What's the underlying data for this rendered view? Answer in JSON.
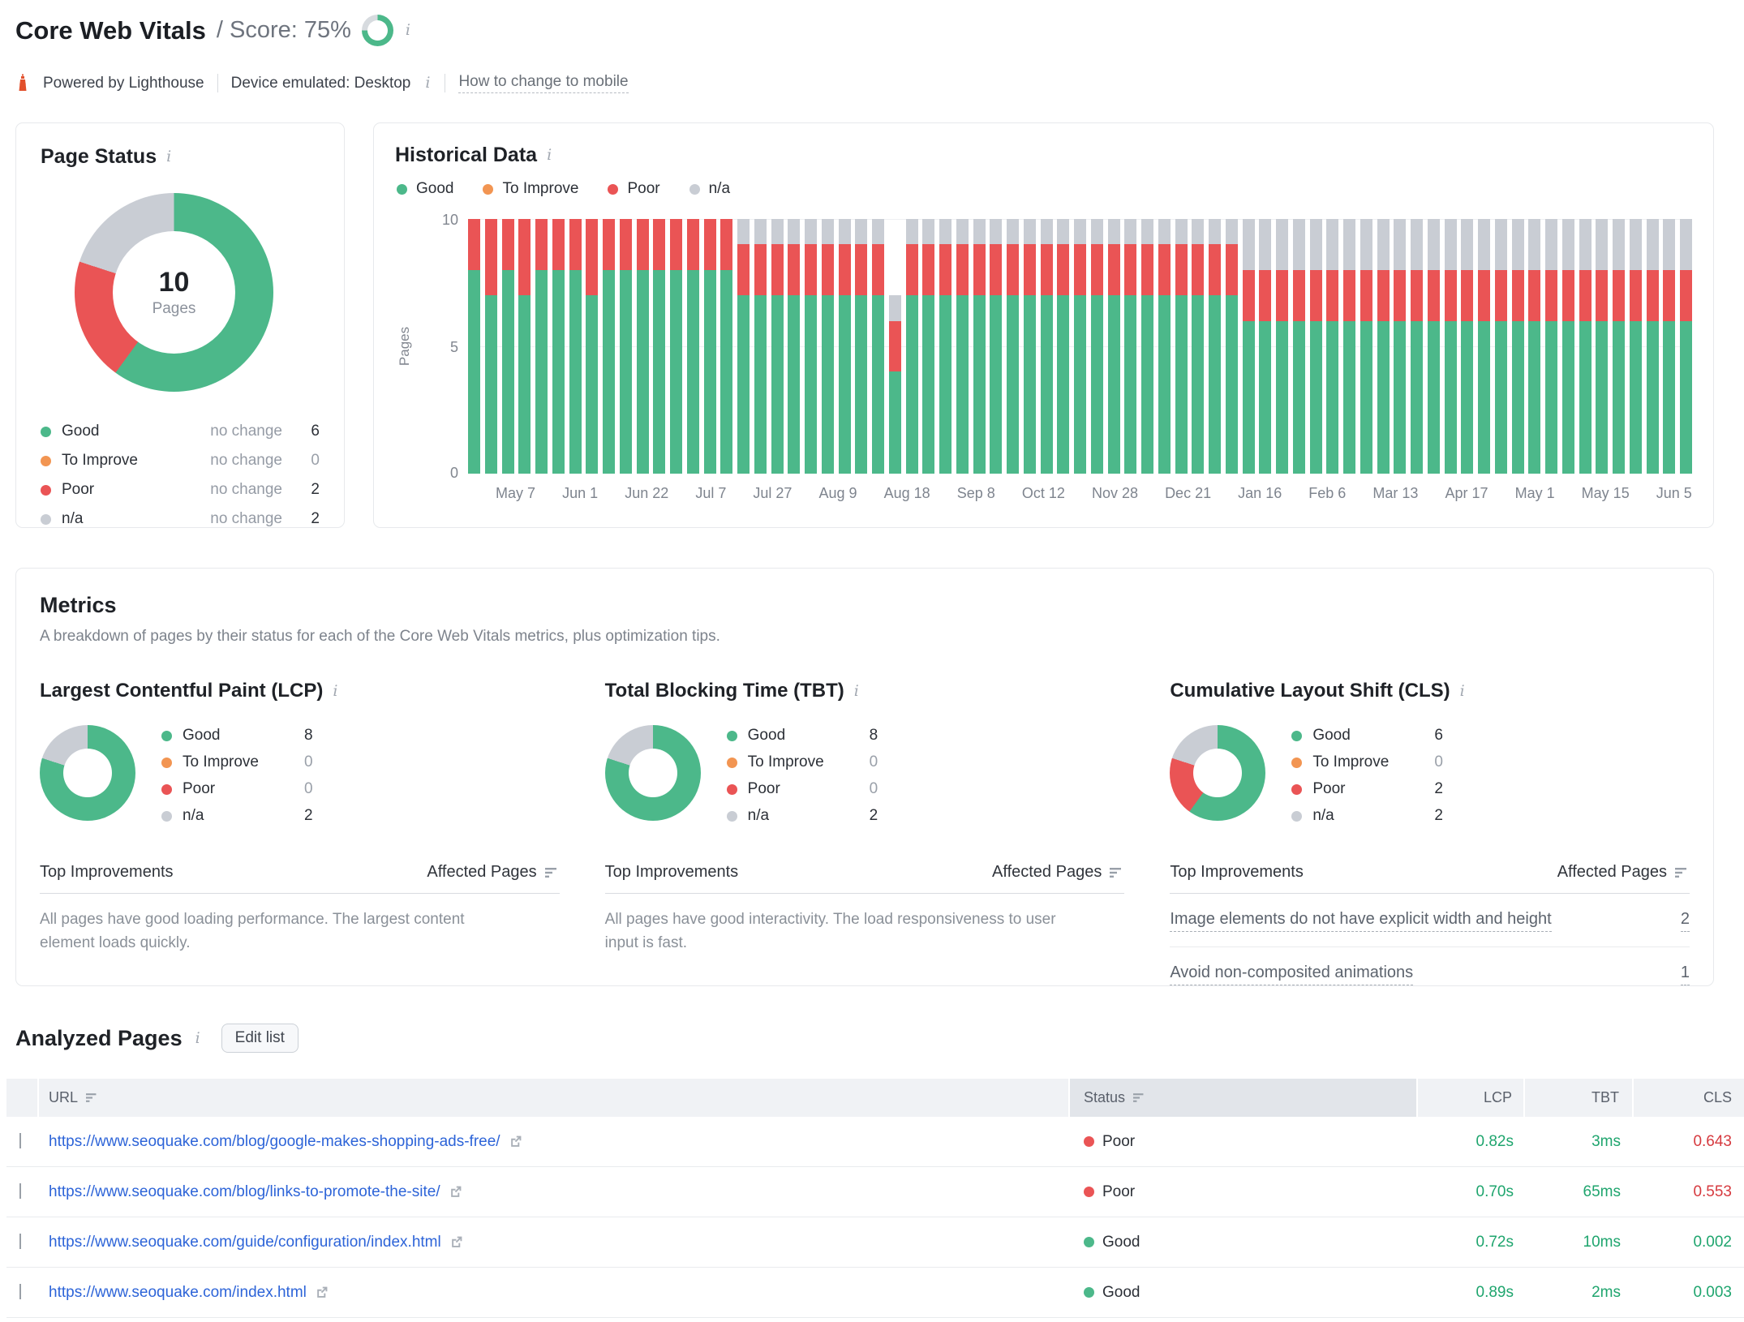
{
  "header": {
    "title": "Core Web Vitals",
    "score_label": "/ Score: 75%",
    "score_percent": 75,
    "powered_by": "Powered by Lighthouse",
    "device_label": "Device emulated: Desktop",
    "mobile_link": "How to change to mobile"
  },
  "colors": {
    "good": "#4cb88a",
    "to_improve": "#f29552",
    "poor": "#ea5455",
    "na": "#c9cdd4",
    "link_blue": "#2d64d8",
    "value_good": "#1fa56e",
    "value_poor": "#d63a3f"
  },
  "page_status": {
    "title": "Page Status",
    "center_value": "10",
    "center_label": "Pages",
    "rows": [
      {
        "label": "Good",
        "change": "no change",
        "count": "6"
      },
      {
        "label": "To Improve",
        "change": "no change",
        "count": "0"
      },
      {
        "label": "Poor",
        "change": "no change",
        "count": "2"
      },
      {
        "label": "n/a",
        "change": "no change",
        "count": "2"
      }
    ]
  },
  "historical": {
    "title": "Historical Data",
    "legend": [
      {
        "label": "Good"
      },
      {
        "label": "To Improve"
      },
      {
        "label": "Poor"
      },
      {
        "label": "n/a"
      }
    ],
    "ylabel": "Pages",
    "yticks": [
      "10",
      "5",
      "0"
    ]
  },
  "chart_data": [
    {
      "type": "pie",
      "name": "page_status_donut",
      "labels": [
        "Good",
        "To Improve",
        "Poor",
        "n/a"
      ],
      "values": [
        6,
        0,
        2,
        2
      ],
      "center_text": "10 Pages",
      "colors": [
        "#4cb88a",
        "#f29552",
        "#ea5455",
        "#c9cdd4"
      ]
    },
    {
      "type": "bar",
      "name": "historical",
      "stacked": true,
      "ylabel": "Pages",
      "ylim": [
        0,
        10
      ],
      "grid": true,
      "legend_position": "top",
      "series_order": [
        "good",
        "to_improve",
        "poor",
        "na"
      ],
      "x_labels": [
        "May 7",
        "Jun 1",
        "Jun 22",
        "Jul 7",
        "Jul 27",
        "Aug 9",
        "Aug 18",
        "Sep 8",
        "Oct 12",
        "Nov 28",
        "Dec 21",
        "Jan 16",
        "Feb 6",
        "Mar 13",
        "Apr 17",
        "May 1",
        "May 15",
        "Jun 5"
      ],
      "bars": [
        [
          8,
          0,
          2,
          0
        ],
        [
          7,
          0,
          3,
          0
        ],
        [
          8,
          0,
          2,
          0
        ],
        [
          7,
          0,
          3,
          0
        ],
        [
          8,
          0,
          2,
          0
        ],
        [
          8,
          0,
          2,
          0
        ],
        [
          8,
          0,
          2,
          0
        ],
        [
          7,
          0,
          3,
          0
        ],
        [
          8,
          0,
          2,
          0
        ],
        [
          8,
          0,
          2,
          0
        ],
        [
          8,
          0,
          2,
          0
        ],
        [
          8,
          0,
          2,
          0
        ],
        [
          8,
          0,
          2,
          0
        ],
        [
          8,
          0,
          2,
          0
        ],
        [
          8,
          0,
          2,
          0
        ],
        [
          8,
          0,
          2,
          0
        ],
        [
          7,
          0,
          2,
          1
        ],
        [
          7,
          0,
          2,
          1
        ],
        [
          7,
          0,
          2,
          1
        ],
        [
          7,
          0,
          2,
          1
        ],
        [
          7,
          0,
          2,
          1
        ],
        [
          7,
          0,
          2,
          1
        ],
        [
          7,
          0,
          2,
          1
        ],
        [
          7,
          0,
          2,
          1
        ],
        [
          7,
          0,
          2,
          1
        ],
        [
          4,
          0,
          2,
          1
        ],
        [
          7,
          0,
          2,
          1
        ],
        [
          7,
          0,
          2,
          1
        ],
        [
          7,
          0,
          2,
          1
        ],
        [
          7,
          0,
          2,
          1
        ],
        [
          7,
          0,
          2,
          1
        ],
        [
          7,
          0,
          2,
          1
        ],
        [
          7,
          0,
          2,
          1
        ],
        [
          7,
          0,
          2,
          1
        ],
        [
          7,
          0,
          2,
          1
        ],
        [
          7,
          0,
          2,
          1
        ],
        [
          7,
          0,
          2,
          1
        ],
        [
          7,
          0,
          2,
          1
        ],
        [
          7,
          0,
          2,
          1
        ],
        [
          7,
          0,
          2,
          1
        ],
        [
          7,
          0,
          2,
          1
        ],
        [
          7,
          0,
          2,
          1
        ],
        [
          7,
          0,
          2,
          1
        ],
        [
          7,
          0,
          2,
          1
        ],
        [
          7,
          0,
          2,
          1
        ],
        [
          7,
          0,
          2,
          1
        ],
        [
          6,
          0,
          2,
          2
        ],
        [
          6,
          0,
          2,
          2
        ],
        [
          6,
          0,
          2,
          2
        ],
        [
          6,
          0,
          2,
          2
        ],
        [
          6,
          0,
          2,
          2
        ],
        [
          6,
          0,
          2,
          2
        ],
        [
          6,
          0,
          2,
          2
        ],
        [
          6,
          0,
          2,
          2
        ],
        [
          6,
          0,
          2,
          2
        ],
        [
          6,
          0,
          2,
          2
        ],
        [
          6,
          0,
          2,
          2
        ],
        [
          6,
          0,
          2,
          2
        ],
        [
          6,
          0,
          2,
          2
        ],
        [
          6,
          0,
          2,
          2
        ],
        [
          6,
          0,
          2,
          2
        ],
        [
          6,
          0,
          2,
          2
        ],
        [
          6,
          0,
          2,
          2
        ],
        [
          6,
          0,
          2,
          2
        ],
        [
          6,
          0,
          2,
          2
        ],
        [
          6,
          0,
          2,
          2
        ],
        [
          6,
          0,
          2,
          2
        ],
        [
          6,
          0,
          2,
          2
        ],
        [
          6,
          0,
          2,
          2
        ],
        [
          6,
          0,
          2,
          2
        ],
        [
          6,
          0,
          2,
          2
        ],
        [
          6,
          0,
          2,
          2
        ],
        [
          6,
          0,
          2,
          2
        ]
      ]
    },
    {
      "type": "pie",
      "name": "lcp_donut",
      "labels": [
        "Good",
        "To Improve",
        "Poor",
        "n/a"
      ],
      "values": [
        8,
        0,
        0,
        2
      ]
    },
    {
      "type": "pie",
      "name": "tbt_donut",
      "labels": [
        "Good",
        "To Improve",
        "Poor",
        "n/a"
      ],
      "values": [
        8,
        0,
        0,
        2
      ]
    },
    {
      "type": "pie",
      "name": "cls_donut",
      "labels": [
        "Good",
        "To Improve",
        "Poor",
        "n/a"
      ],
      "values": [
        6,
        0,
        2,
        2
      ]
    }
  ],
  "metrics": {
    "title": "Metrics",
    "subtitle": "A breakdown of pages by their status for each of the Core Web Vitals metrics, plus optimization tips.",
    "top_improvements_label": "Top Improvements",
    "affected_pages_label": "Affected Pages",
    "items": [
      {
        "name": "Largest Contentful Paint (LCP)",
        "legend": [
          {
            "label": "Good",
            "count": "8"
          },
          {
            "label": "To Improve",
            "count": "0"
          },
          {
            "label": "Poor",
            "count": "0"
          },
          {
            "label": "n/a",
            "count": "2"
          }
        ],
        "note": "All pages have good loading performance. The largest content element loads quickly."
      },
      {
        "name": "Total Blocking Time (TBT)",
        "legend": [
          {
            "label": "Good",
            "count": "8"
          },
          {
            "label": "To Improve",
            "count": "0"
          },
          {
            "label": "Poor",
            "count": "0"
          },
          {
            "label": "n/a",
            "count": "2"
          }
        ],
        "note": "All pages have good interactivity. The load responsiveness to user input is fast."
      },
      {
        "name": "Cumulative Layout Shift (CLS)",
        "legend": [
          {
            "label": "Good",
            "count": "6"
          },
          {
            "label": "To Improve",
            "count": "0"
          },
          {
            "label": "Poor",
            "count": "2"
          },
          {
            "label": "n/a",
            "count": "2"
          }
        ],
        "improvements": [
          {
            "text": "Image elements do not have explicit width and height",
            "pages": "2"
          },
          {
            "text": "Avoid non-composited animations",
            "pages": "1"
          }
        ]
      }
    ]
  },
  "analyzed": {
    "title": "Analyzed Pages",
    "edit_button": "Edit list",
    "columns": {
      "url": "URL",
      "status": "Status",
      "lcp": "LCP",
      "tbt": "TBT",
      "cls": "CLS"
    },
    "rows": [
      {
        "url": "https://www.seoquake.com/blog/google-makes-shopping-ads-free/",
        "status": "Poor",
        "lcp": "0.82s",
        "tbt": "3ms",
        "cls": "0.643"
      },
      {
        "url": "https://www.seoquake.com/blog/links-to-promote-the-site/",
        "status": "Poor",
        "lcp": "0.70s",
        "tbt": "65ms",
        "cls": "0.553"
      },
      {
        "url": "https://www.seoquake.com/guide/configuration/index.html",
        "status": "Good",
        "lcp": "0.72s",
        "tbt": "10ms",
        "cls": "0.002"
      },
      {
        "url": "https://www.seoquake.com/index.html",
        "status": "Good",
        "lcp": "0.89s",
        "tbt": "2ms",
        "cls": "0.003"
      }
    ]
  }
}
